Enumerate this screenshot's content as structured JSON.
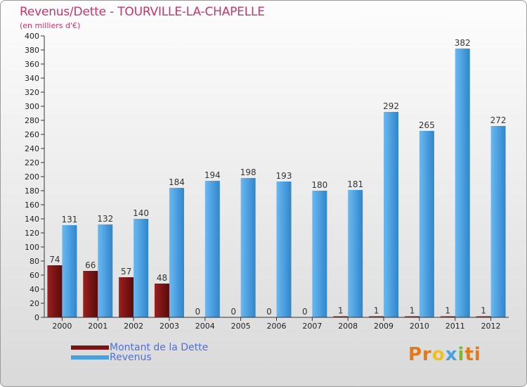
{
  "title": "Revenus/Dette - TOURVILLE-LA-CHAPELLE",
  "subtitle": "(en milliers d'€)",
  "colors": {
    "dette": "#7a1414",
    "revenus": "#4aa0e0",
    "title": "#c8336e",
    "legend_text": "#4f6fe0"
  },
  "legend": {
    "items": [
      {
        "label": "Montant de la Dette",
        "color": "#7a1414"
      },
      {
        "label": "Revenus",
        "color": "#4aa0e0"
      }
    ]
  },
  "logo": {
    "parts": [
      {
        "text": "Pr",
        "color": "#e07a1a"
      },
      {
        "text": "o",
        "color": "#f0c020"
      },
      {
        "text": "x",
        "color": "#4aa0e0"
      },
      {
        "text": "i",
        "color": "#7ab830"
      },
      {
        "text": "ti",
        "color": "#e07a1a"
      }
    ]
  },
  "chart_data": {
    "type": "bar",
    "categories": [
      "2000",
      "2001",
      "2002",
      "2003",
      "2004",
      "2005",
      "2006",
      "2007",
      "2008",
      "2009",
      "2010",
      "2011",
      "2012"
    ],
    "series": [
      {
        "name": "Montant de la Dette",
        "values": [
          74,
          66,
          57,
          48,
          0,
          0,
          0,
          0,
          1,
          1,
          1,
          1,
          1
        ]
      },
      {
        "name": "Revenus",
        "values": [
          131,
          132,
          140,
          184,
          194,
          198,
          193,
          180,
          181,
          292,
          265,
          382,
          272
        ]
      }
    ],
    "ylim": [
      0,
      400
    ],
    "yticks": [
      0,
      20,
      40,
      60,
      80,
      100,
      120,
      140,
      160,
      180,
      200,
      220,
      240,
      260,
      280,
      300,
      320,
      340,
      360,
      380,
      400
    ],
    "grid": false,
    "legend_position": "bottom-left"
  }
}
